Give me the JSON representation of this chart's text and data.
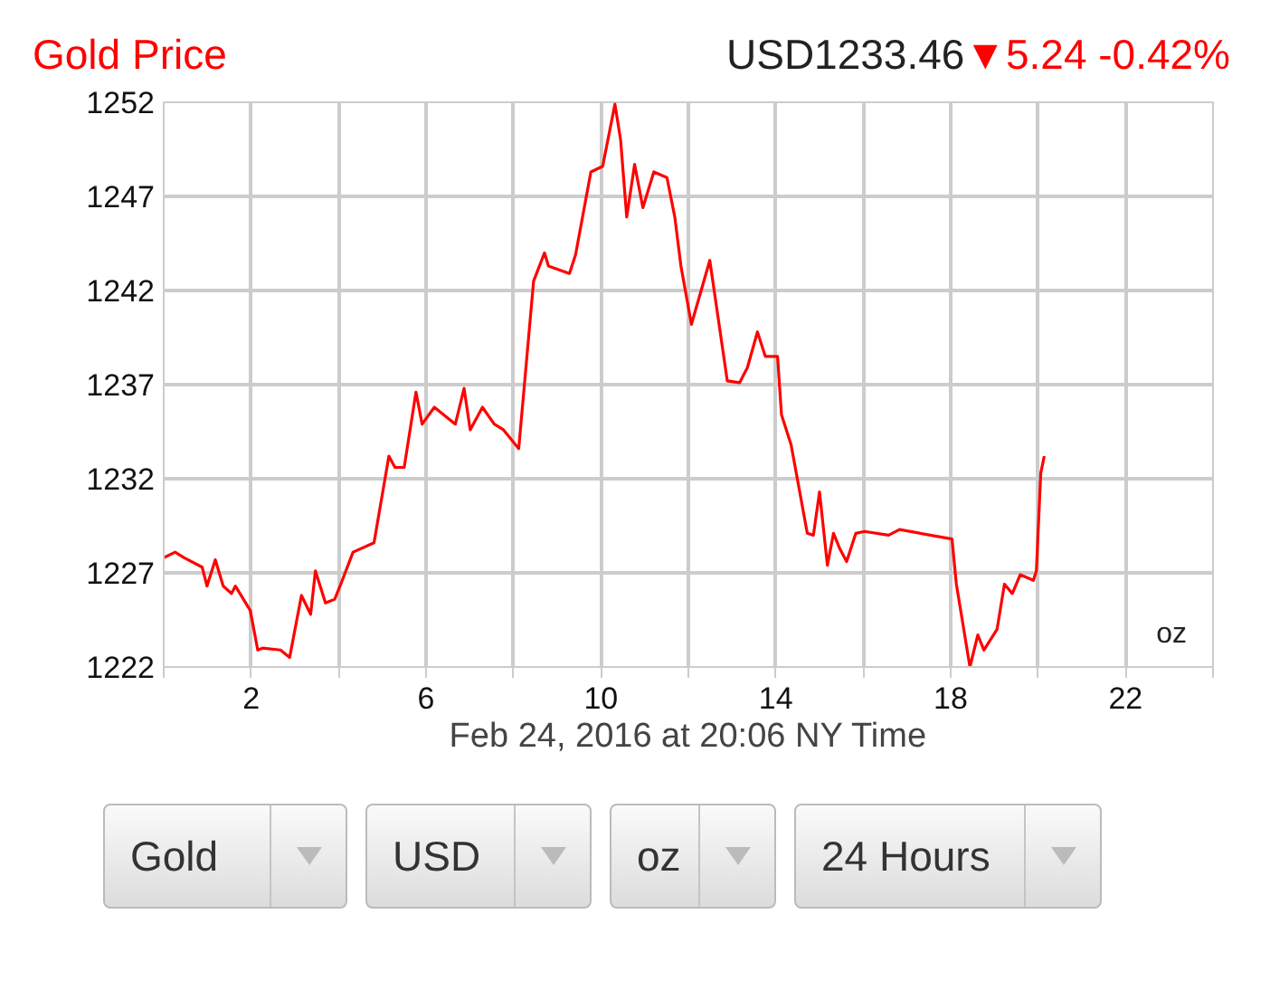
{
  "chart_data": {
    "type": "line",
    "title": "Gold Price",
    "subtitle": "USD1233.46",
    "xlabel": "Feb 24, 2016 at 20:06 NY Time",
    "annotations": [
      "▼5.24 -0.42%",
      "oz",
      "Gold",
      "USD",
      "oz",
      "24 Hours"
    ],
    "x": [
      0,
      0.26,
      0.47,
      0.88,
      0.99,
      1.18,
      1.36,
      1.55,
      1.64,
      1.98,
      2.15,
      2.26,
      2.67,
      2.88,
      3.15,
      3.36,
      3.47,
      3.7,
      3.91,
      4.05,
      4.33,
      4.81,
      5.15,
      5.29,
      5.5,
      5.77,
      5.91,
      6.19,
      6.67,
      6.87,
      7.01,
      7.29,
      7.56,
      7.77,
      8.12,
      8.46,
      8.71,
      8.8,
      9.28,
      9.42,
      9.77,
      10.04,
      10.32,
      10.45,
      10.59,
      10.77,
      10.96,
      11.21,
      11.51,
      11.69,
      11.83,
      12.07,
      12.49,
      12.89,
      13.17,
      13.35,
      13.58,
      13.76,
      14.04,
      14.13,
      14.35,
      14.72,
      14.86,
      15.0,
      15.18,
      15.32,
      15.46,
      15.62,
      15.83,
      16.03,
      16.58,
      16.83,
      18.03,
      18.13,
      18.44,
      18.62,
      18.76,
      19.06,
      19.23,
      19.41,
      19.59,
      19.89,
      19.96,
      20.06,
      20.14
    ],
    "series": [
      {
        "color": "#ff0000",
        "values": [
          1227.8,
          1228.1,
          1227.8,
          1227.3,
          1226.3,
          1227.7,
          1226.3,
          1225.9,
          1226.3,
          1225.0,
          1222.9,
          1223.0,
          1222.9,
          1222.5,
          1225.8,
          1224.8,
          1227.1,
          1225.4,
          1225.6,
          1226.4,
          1228.1,
          1228.6,
          1233.2,
          1232.6,
          1232.6,
          1236.6,
          1234.9,
          1235.8,
          1234.9,
          1236.8,
          1234.6,
          1235.8,
          1234.9,
          1234.6,
          1233.6,
          1242.5,
          1244.0,
          1243.3,
          1242.9,
          1243.9,
          1248.3,
          1248.6,
          1251.9,
          1250.0,
          1245.9,
          1248.7,
          1246.4,
          1248.3,
          1248.0,
          1245.9,
          1243.3,
          1240.2,
          1243.6,
          1237.2,
          1237.1,
          1237.9,
          1239.8,
          1238.5,
          1238.5,
          1235.4,
          1233.8,
          1229.1,
          1229.0,
          1231.3,
          1227.4,
          1229.1,
          1228.3,
          1227.6,
          1229.1,
          1229.2,
          1229.0,
          1229.3,
          1228.8,
          1226.4,
          1222.0,
          1223.7,
          1222.9,
          1224.0,
          1226.4,
          1225.9,
          1226.9,
          1226.6,
          1227.1,
          1232.3,
          1233.2
        ]
      }
    ],
    "xlim": [
      0,
      24
    ],
    "ylim": [
      1222,
      1252
    ],
    "xticks": [
      {
        "value": 0,
        "label": null
      },
      2,
      {
        "value": 4,
        "label": null
      },
      6,
      {
        "value": 8,
        "label": null
      },
      10,
      {
        "value": 12,
        "label": null
      },
      14,
      {
        "value": 16,
        "label": null
      },
      18,
      {
        "value": 20,
        "label": null
      },
      22,
      {
        "value": 24,
        "label": null
      }
    ],
    "yticks": [
      1222,
      1227,
      1232,
      1237,
      1242,
      1247,
      1252
    ],
    "grid": true,
    "marker": "none",
    "line_style": "solid"
  }
}
